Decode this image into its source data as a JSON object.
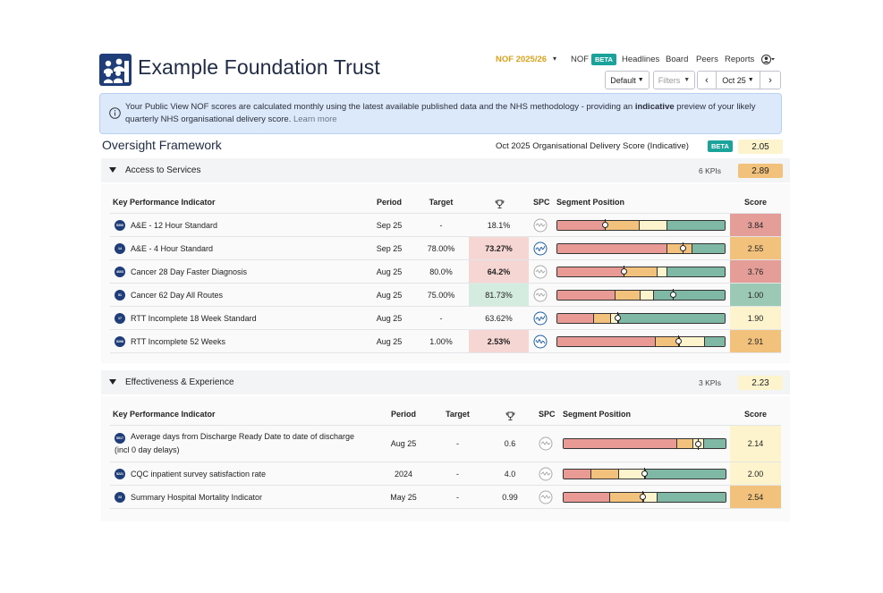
{
  "header": {
    "trust_name": "Example Foundation Trust",
    "nof_year": "NOF 2025/26",
    "nav": [
      "NOF",
      "Headlines",
      "Board",
      "Peers",
      "Reports"
    ],
    "beta": "BETA",
    "buttons": {
      "default": "Default",
      "filters": "Filters",
      "month": "Oct 25"
    }
  },
  "info": {
    "text_a": "Your Public View NOF scores are calculated monthly using the latest available published data and the NHS methodology - providing an ",
    "text_bold": "indicative",
    "text_b": " preview of your likely quarterly NHS organisational delivery score.",
    "learn_more": "Learn more"
  },
  "overview": {
    "title": "Oversight Framework",
    "delivery_label": "Oct 2025 Organisational Delivery Score",
    "indicative": "(Indicative)",
    "beta": "BETA",
    "score": "2.05"
  },
  "columns": {
    "kpi": "Key Performance Indicator",
    "period": "Period",
    "target": "Target",
    "spc": "SPC",
    "segment": "Segment Position",
    "score": "Score"
  },
  "colors": {
    "red": "#ea9a94",
    "amber": "#f2c27d",
    "light": "#fdf3cc",
    "green": "#7fb8a4",
    "score_red": "#e59e97",
    "score_amber": "#f2c27d",
    "score_light": "#fdf3cc",
    "score_green": "#9cc9b6"
  },
  "sections": [
    {
      "name": "Access to Services",
      "kpis": "6 KPIs",
      "score": "2.89",
      "rows": [
        {
          "badge": "5300",
          "name": "A&E - 12 Hour Standard",
          "period": "Sep 25",
          "target": "-",
          "value": "18.1%",
          "value_shade": "none",
          "value_bold": false,
          "spc": "neutral",
          "segments": [
            0.29,
            0.2,
            0.17,
            0.34
          ],
          "marker": 0.29,
          "score": "3.84",
          "score_color": "red"
        },
        {
          "badge": "14",
          "name": "A&E - 4 Hour Standard",
          "period": "Sep 25",
          "target": "78.00%",
          "value": "73.27%",
          "value_shade": "red",
          "value_bold": true,
          "spc": "improving",
          "segments": [
            0.66,
            0.15,
            0.0,
            0.19
          ],
          "marker": 0.75,
          "score": "2.55",
          "score_color": "amber"
        },
        {
          "badge": "4603",
          "name": "Cancer 28 Day Faster Diagnosis",
          "period": "Aug 25",
          "target": "80.0%",
          "value": "64.2%",
          "value_shade": "red",
          "value_bold": true,
          "spc": "neutral",
          "segments": [
            0.4,
            0.2,
            0.06,
            0.34
          ],
          "marker": 0.4,
          "score": "3.76",
          "score_color": "red"
        },
        {
          "badge": "51",
          "name": "Cancer 62 Day All Routes",
          "period": "Aug 25",
          "target": "75.00%",
          "value": "81.73%",
          "value_shade": "green",
          "value_bold": false,
          "spc": "neutral",
          "segments": [
            0.35,
            0.15,
            0.08,
            0.42
          ],
          "marker": 0.69,
          "score": "1.00",
          "score_color": "green"
        },
        {
          "badge": "17",
          "name": "RTT Incomplete 18 Week Standard",
          "period": "Aug 25",
          "target": "-",
          "value": "63.62%",
          "value_shade": "none",
          "value_bold": false,
          "spc": "improving",
          "segments": [
            0.22,
            0.1,
            0.05,
            0.63
          ],
          "marker": 0.36,
          "score": "1.90",
          "score_color": "light"
        },
        {
          "badge": "5298",
          "name": "RTT Incomplete 52 Weeks",
          "period": "Aug 25",
          "target": "1.00%",
          "value": "2.53%",
          "value_shade": "red",
          "value_bold": true,
          "spc": "deteriorating",
          "segments": [
            0.59,
            0.14,
            0.15,
            0.12
          ],
          "marker": 0.72,
          "score": "2.91",
          "score_color": "amber"
        }
      ]
    },
    {
      "name": "Effectiveness & Experience",
      "kpis": "3 KPIs",
      "score": "2.23",
      "rows": [
        {
          "badge": "5517",
          "name": "Average days from Discharge Ready Date to date of discharge",
          "name2": "(incl 0 day delays)",
          "period": "Aug 25",
          "target": "-",
          "value": "0.6",
          "spc": "neutral",
          "segments": [
            0.7,
            0.1,
            0.07,
            0.13
          ],
          "marker": 0.83,
          "score": "2.14",
          "score_color": "light"
        },
        {
          "badge": "5221",
          "name": "CQC inpatient survey satisfaction rate",
          "period": "2024",
          "target": "-",
          "value": "4.0",
          "spc": "neutral",
          "segments": [
            0.17,
            0.17,
            0.17,
            0.49
          ],
          "marker": 0.5,
          "score": "2.00",
          "score_color": "light"
        },
        {
          "badge": "23",
          "name": "Summary Hospital Mortality Indicator",
          "period": "May 25",
          "target": "-",
          "value": "0.99",
          "spc": "neutral",
          "segments": [
            0.29,
            0.21,
            0.08,
            0.42
          ],
          "marker": 0.49,
          "score": "2.54",
          "score_color": "amber"
        }
      ]
    }
  ]
}
